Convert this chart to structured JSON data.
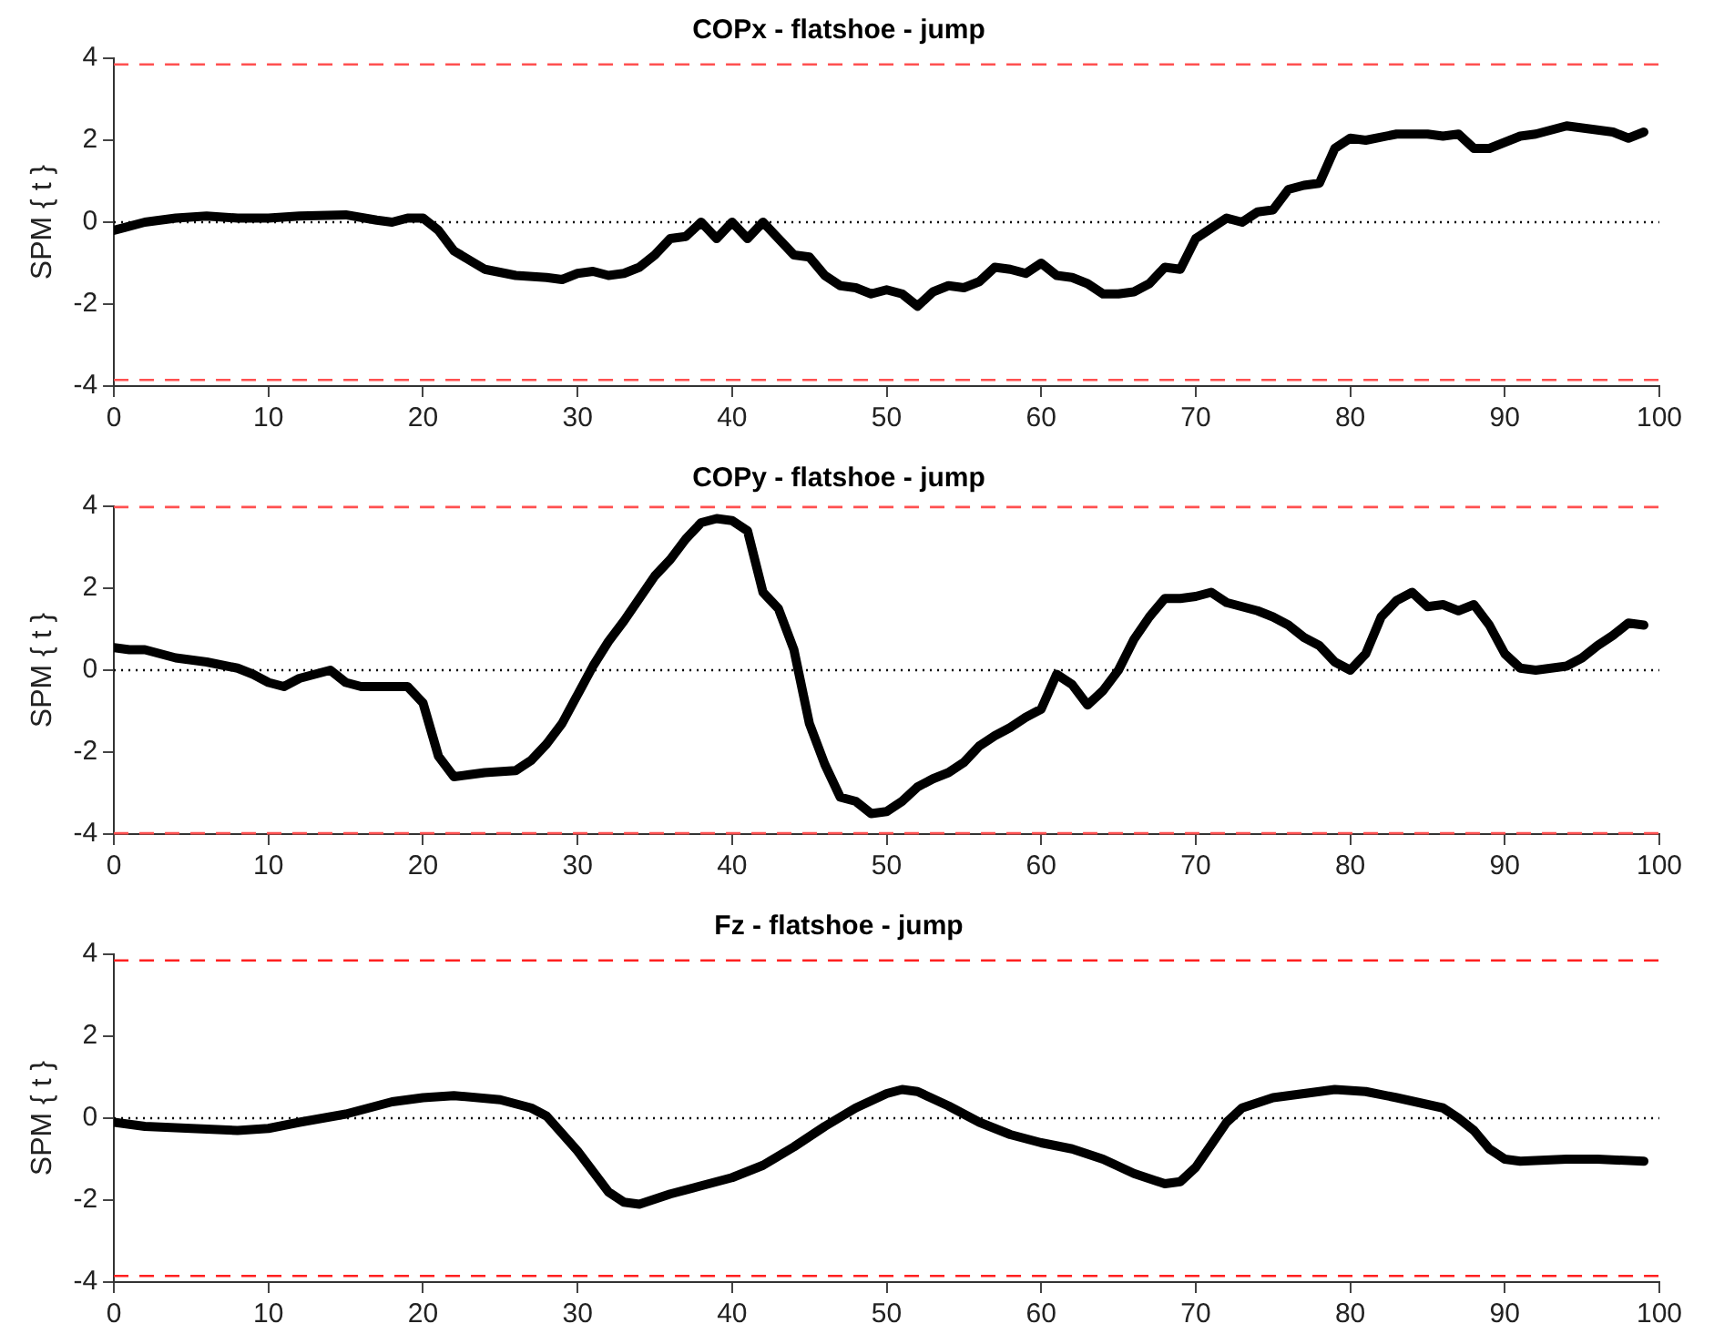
{
  "chart_data": [
    {
      "type": "line",
      "title": "COPx - flatshoe - jump",
      "ylabel": "SPM { t }",
      "color": "#000000",
      "marker": "none",
      "legend": false,
      "xlim": [
        0,
        100
      ],
      "xticks": [
        0,
        10,
        20,
        30,
        40,
        50,
        60,
        70,
        80,
        90,
        100
      ],
      "ylim": [
        -4,
        4
      ],
      "yticks": [
        -4,
        -2,
        0,
        2,
        4
      ],
      "x": [
        0,
        2,
        4,
        6,
        8,
        10,
        12,
        15,
        17,
        18,
        19,
        20,
        21,
        22,
        24,
        26,
        28,
        29,
        30,
        31,
        32,
        33,
        34,
        35,
        36,
        37,
        38,
        39,
        40,
        41,
        42,
        43,
        44,
        45,
        46,
        47,
        48,
        49,
        50,
        51,
        52,
        53,
        54,
        55,
        56,
        57,
        58,
        59,
        60,
        61,
        62,
        63,
        64,
        65,
        66,
        67,
        68,
        69,
        70,
        71,
        72,
        73,
        74,
        75,
        76,
        77,
        78,
        79,
        80,
        81,
        83,
        85,
        86,
        87,
        88,
        89,
        90,
        91,
        92,
        94,
        95,
        97,
        98,
        99
      ],
      "values": [
        -0.2,
        0,
        0.1,
        0.15,
        0.1,
        0.1,
        0.15,
        0.18,
        0.05,
        0,
        0.1,
        0.1,
        -0.2,
        -0.7,
        -1.15,
        -1.3,
        -1.35,
        -1.4,
        -1.25,
        -1.2,
        -1.3,
        -1.25,
        -1.1,
        -0.8,
        -0.4,
        -0.35,
        0,
        -0.4,
        0,
        -0.4,
        0,
        -0.4,
        -0.8,
        -0.85,
        -1.3,
        -1.55,
        -1.6,
        -1.75,
        -1.65,
        -1.75,
        -2.05,
        -1.7,
        -1.55,
        -1.6,
        -1.45,
        -1.1,
        -1.15,
        -1.25,
        -1,
        -1.3,
        -1.35,
        -1.5,
        -1.75,
        -1.75,
        -1.7,
        -1.5,
        -1.1,
        -1.15,
        -0.4,
        -0.15,
        0.1,
        0,
        0.25,
        0.3,
        0.8,
        0.9,
        0.95,
        1.8,
        2.05,
        2,
        2.15,
        2.15,
        2.1,
        2.15,
        1.8,
        1.8,
        1.95,
        2.1,
        2.15,
        2.35,
        2.3,
        2.2,
        2.05,
        2.2
      ],
      "ref_lines": [
        {
          "axis": "y",
          "value": 3.85,
          "color": "#ff5050",
          "line_style": "dashed"
        },
        {
          "axis": "y",
          "value": -3.85,
          "color": "#ff5050",
          "line_style": "dashed"
        },
        {
          "axis": "y",
          "value": 0,
          "color": "#000000",
          "line_style": "dotted"
        }
      ]
    },
    {
      "type": "line",
      "title": "COPy - flatshoe - jump",
      "ylabel": "SPM { t }",
      "color": "#000000",
      "marker": "none",
      "legend": false,
      "xlim": [
        0,
        100
      ],
      "xticks": [
        0,
        10,
        20,
        30,
        40,
        50,
        60,
        70,
        80,
        90,
        100
      ],
      "ylim": [
        -4,
        4
      ],
      "yticks": [
        -4,
        -2,
        0,
        2,
        4
      ],
      "x": [
        0,
        1,
        2,
        4,
        6,
        8,
        9,
        10,
        11,
        12,
        13,
        14,
        15,
        16,
        18,
        19,
        20,
        21,
        22,
        23,
        24,
        26,
        27,
        28,
        29,
        30,
        31,
        32,
        33,
        34,
        35,
        36,
        37,
        38,
        39,
        40,
        41,
        42,
        43,
        44,
        45,
        46,
        47,
        48,
        49,
        50,
        51,
        52,
        53,
        54,
        55,
        56,
        57,
        58,
        59,
        60,
        61,
        62,
        63,
        64,
        65,
        66,
        67,
        68,
        69,
        70,
        71,
        72,
        73,
        74,
        75,
        76,
        77,
        78,
        79,
        80,
        81,
        82,
        83,
        84,
        85,
        86,
        87,
        88,
        89,
        90,
        91,
        92,
        93,
        94,
        95,
        96,
        97,
        98,
        99
      ],
      "values": [
        0.55,
        0.5,
        0.5,
        0.3,
        0.2,
        0.05,
        -0.1,
        -0.3,
        -0.4,
        -0.2,
        -0.1,
        0,
        -0.3,
        -0.4,
        -0.4,
        -0.4,
        -0.8,
        -2.1,
        -2.6,
        -2.55,
        -2.5,
        -2.45,
        -2.2,
        -1.8,
        -1.3,
        -0.6,
        0.1,
        0.7,
        1.2,
        1.75,
        2.3,
        2.7,
        3.2,
        3.6,
        3.7,
        3.65,
        3.4,
        1.9,
        1.5,
        0.5,
        -1.3,
        -2.3,
        -3.1,
        -3.2,
        -3.5,
        -3.45,
        -3.2,
        -2.85,
        -2.65,
        -2.5,
        -2.25,
        -1.85,
        -1.6,
        -1.4,
        -1.15,
        -0.95,
        -0.1,
        -0.35,
        -0.85,
        -0.5,
        0,
        0.75,
        1.3,
        1.75,
        1.75,
        1.8,
        1.9,
        1.65,
        1.55,
        1.45,
        1.3,
        1.1,
        0.8,
        0.6,
        0.2,
        0,
        0.4,
        1.3,
        1.7,
        1.9,
        1.55,
        1.6,
        1.45,
        1.6,
        1.1,
        0.4,
        0.05,
        0,
        0.05,
        0.1,
        0.3,
        0.6,
        0.85,
        1.15,
        1.1
      ],
      "ref_lines": [
        {
          "axis": "y",
          "value": 3.98,
          "color": "#ff5050",
          "line_style": "dashed"
        },
        {
          "axis": "y",
          "value": -3.98,
          "color": "#ff5050",
          "line_style": "dashed"
        },
        {
          "axis": "y",
          "value": 0,
          "color": "#000000",
          "line_style": "dotted"
        }
      ]
    },
    {
      "type": "line",
      "title": "Fz - flatshoe - jump",
      "ylabel": "SPM { t }",
      "color": "#000000",
      "marker": "none",
      "legend": false,
      "xlim": [
        0,
        100
      ],
      "xticks": [
        0,
        10,
        20,
        30,
        40,
        50,
        60,
        70,
        80,
        90,
        100
      ],
      "ylim": [
        -4,
        4
      ],
      "yticks": [
        -4,
        -2,
        0,
        2,
        4
      ],
      "x": [
        0,
        2,
        5,
        8,
        10,
        12,
        15,
        18,
        20,
        22,
        25,
        27,
        28,
        30,
        32,
        33,
        34,
        36,
        38,
        40,
        42,
        44,
        46,
        48,
        50,
        51,
        52,
        54,
        56,
        58,
        60,
        62,
        64,
        66,
        68,
        69,
        70,
        72,
        73,
        75,
        77,
        79,
        81,
        83,
        86,
        87,
        88,
        89,
        90,
        91,
        94,
        96,
        99
      ],
      "values": [
        -0.1,
        -0.2,
        -0.25,
        -0.3,
        -0.25,
        -0.1,
        0.1,
        0.4,
        0.5,
        0.55,
        0.45,
        0.25,
        0.05,
        -0.8,
        -1.8,
        -2.05,
        -2.1,
        -1.85,
        -1.65,
        -1.45,
        -1.15,
        -0.7,
        -0.2,
        0.25,
        0.6,
        0.7,
        0.65,
        0.3,
        -0.1,
        -0.4,
        -0.6,
        -0.75,
        -1,
        -1.35,
        -1.6,
        -1.55,
        -1.2,
        -0.1,
        0.25,
        0.5,
        0.6,
        0.7,
        0.65,
        0.5,
        0.25,
        0,
        -0.3,
        -0.75,
        -1,
        -1.05,
        -1,
        -1,
        -1.05
      ],
      "ref_lines": [
        {
          "axis": "y",
          "value": 3.85,
          "color": "#ff2020",
          "line_style": "dashed"
        },
        {
          "axis": "y",
          "value": -3.85,
          "color": "#ff2020",
          "line_style": "dashed"
        },
        {
          "axis": "y",
          "value": 0,
          "color": "#000000",
          "line_style": "dotted"
        }
      ]
    }
  ]
}
